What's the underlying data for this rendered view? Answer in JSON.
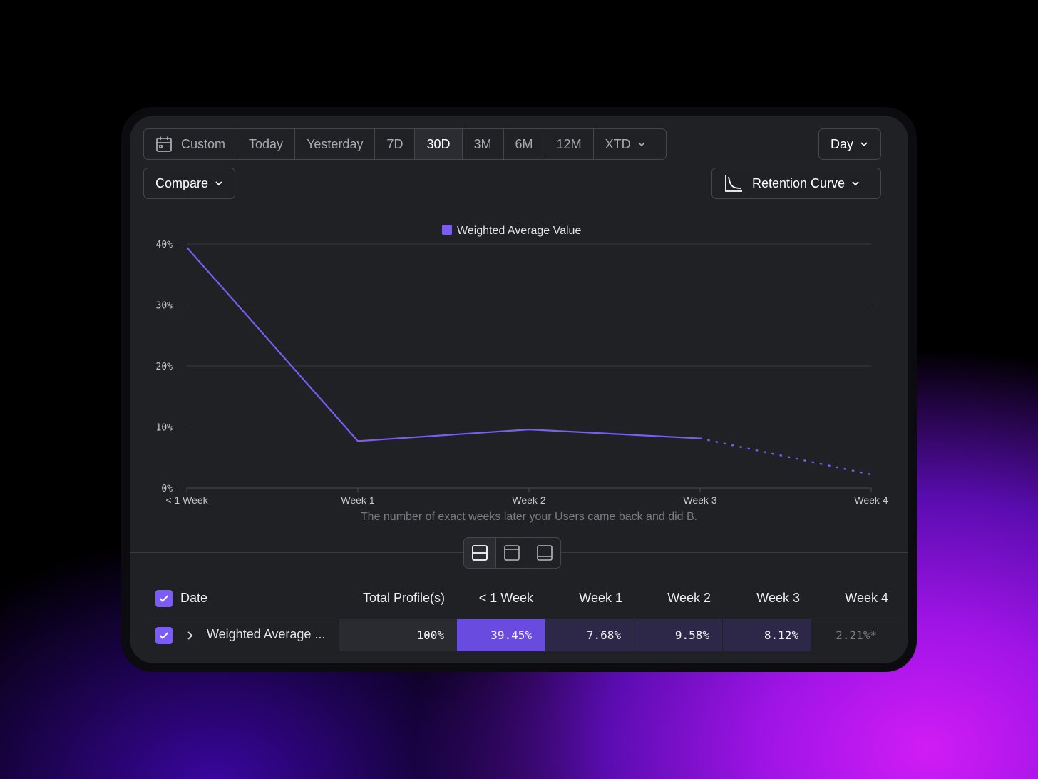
{
  "toolbar": {
    "ranges": [
      "Custom",
      "Today",
      "Yesterday",
      "7D",
      "30D",
      "3M",
      "6M",
      "12M",
      "XTD"
    ],
    "active_range": "30D",
    "granularity": "Day",
    "compare": "Compare",
    "chart_type": "Retention Curve"
  },
  "chart_data": {
    "type": "line",
    "legend": "Weighted Average Value",
    "categories": [
      "< 1 Week",
      "Week 1",
      "Week 2",
      "Week 3",
      "Week 4"
    ],
    "values": [
      39.45,
      7.68,
      9.58,
      8.12,
      2.21
    ],
    "incomplete_from_index": 3,
    "yticks": [
      "0%",
      "10%",
      "20%",
      "30%",
      "40%"
    ],
    "ylim": [
      0,
      40
    ],
    "xlabel": "The number of exact weeks later your Users came back and did B.",
    "color": "#7b5cf5"
  },
  "table": {
    "headers": [
      "Date",
      "Total Profile(s)",
      "< 1 Week",
      "Week 1",
      "Week 2",
      "Week 3",
      "Week 4"
    ],
    "row": {
      "label": "Weighted Average ...",
      "total": "100%",
      "cells": [
        "39.45%",
        "7.68%",
        "9.58%",
        "8.12%",
        "2.21%*"
      ]
    }
  },
  "colors": {
    "accent": "#7b5cf5",
    "cell_strong": "#6a4be0",
    "cell_weak": "#2d2748"
  }
}
